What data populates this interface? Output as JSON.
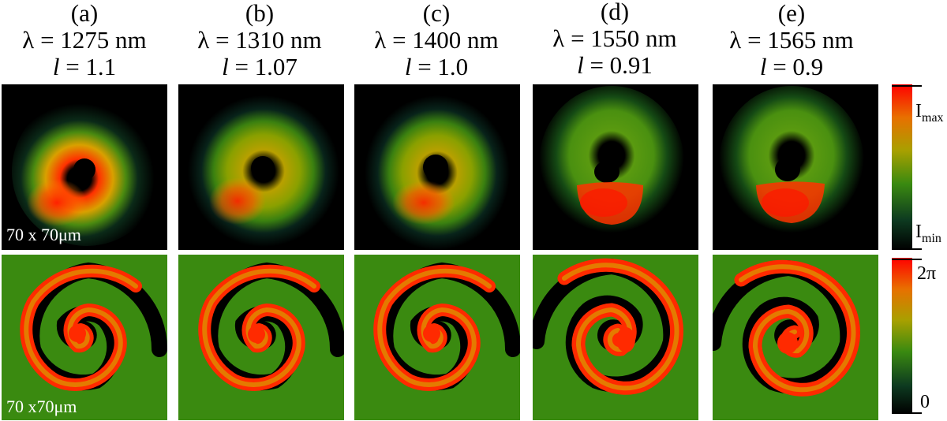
{
  "columns": [
    {
      "tag": "(a)",
      "lambda": "λ = 1275 nm",
      "l_sym": "l",
      "l_val": " = 1.1"
    },
    {
      "tag": "(b)",
      "lambda": "λ = 1310 nm",
      "l_sym": "l",
      "l_val": " = 1.07"
    },
    {
      "tag": "(c)",
      "lambda": "λ = 1400 nm",
      "l_sym": "l",
      "l_val": " = 1.0"
    },
    {
      "tag": "(d)",
      "lambda": "λ = 1550 nm",
      "l_sym": "l",
      "l_val": " = 0.91"
    },
    {
      "tag": "(e)",
      "lambda": "λ = 1565 nm",
      "l_sym": "l",
      "l_val": " = 0.9"
    }
  ],
  "scale_labels": {
    "intensity": "70 x 70μm",
    "phase": "70 x70μm"
  },
  "colorbars": {
    "intensity": {
      "max_main": "I",
      "max_sub": "max",
      "min_main": "I",
      "min_sub": "min"
    },
    "phase": {
      "max": "2π",
      "min": "0"
    }
  },
  "colors": {
    "low": "#000000",
    "mid": "#3a8a10",
    "high": "#ff1a00"
  }
}
